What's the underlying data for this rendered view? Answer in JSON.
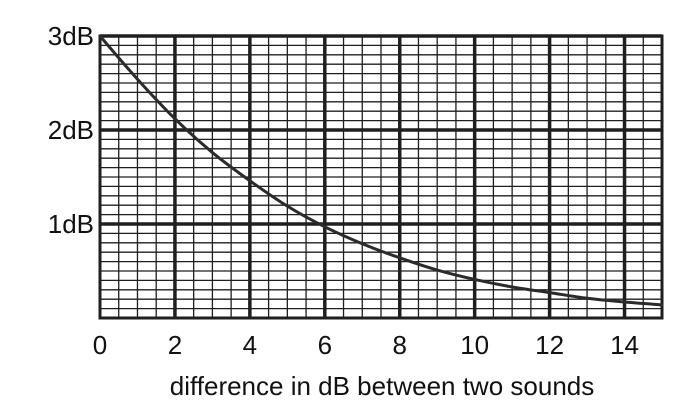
{
  "chart_data": {
    "type": "line",
    "title": "",
    "xlabel": "difference in dB between two sounds",
    "ylabel": "",
    "xlim": [
      0,
      15
    ],
    "ylim": [
      0,
      3
    ],
    "grid": true,
    "x_ticks": [
      0,
      2,
      4,
      6,
      8,
      10,
      12,
      14
    ],
    "x_tick_labels": [
      "0",
      "2",
      "4",
      "6",
      "8",
      "10",
      "12",
      "14"
    ],
    "y_ticks": [
      1,
      2,
      3
    ],
    "y_tick_labels": [
      "1dB",
      "2dB",
      "3dB"
    ],
    "series": [
      {
        "x": [
          0,
          1,
          2,
          3,
          4,
          5,
          6,
          7,
          8,
          9,
          10,
          11,
          12,
          13,
          14,
          15
        ],
        "values": [
          3.0,
          2.54,
          2.12,
          1.76,
          1.46,
          1.19,
          0.97,
          0.79,
          0.64,
          0.51,
          0.41,
          0.33,
          0.27,
          0.21,
          0.17,
          0.14
        ]
      }
    ],
    "colors": {
      "line": "#2b2b2b",
      "grid": "#1f1f1f",
      "text": "#111111"
    }
  }
}
